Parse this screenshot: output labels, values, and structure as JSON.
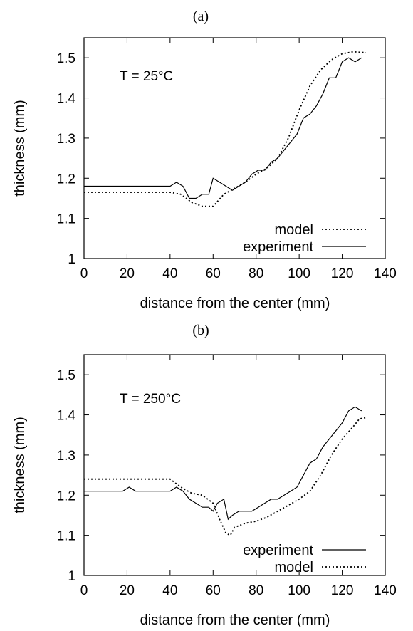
{
  "chart_data": [
    {
      "panel_label": "(a)",
      "type": "line",
      "xlabel": "distance from the center (mm)",
      "ylabel": "thickness (mm)",
      "xlim": [
        0,
        140
      ],
      "ylim": [
        1,
        1.55
      ],
      "xticks": [
        "0",
        "20",
        "40",
        "60",
        "80",
        "100",
        "120",
        "140"
      ],
      "yticks": [
        "1",
        "1.1",
        "1.2",
        "1.3",
        "1.4",
        "1.5"
      ],
      "annotation": "T = 25°C",
      "legend_position": "bottom-right",
      "series": [
        {
          "name": "model",
          "style": "dotted",
          "color": "#000000",
          "x": [
            0,
            20,
            40,
            45,
            50,
            55,
            60,
            65,
            70,
            75,
            80,
            85,
            90,
            95,
            100,
            105,
            110,
            115,
            120,
            125,
            131
          ],
          "y": [
            1.165,
            1.165,
            1.165,
            1.16,
            1.14,
            1.13,
            1.13,
            1.16,
            1.175,
            1.19,
            1.21,
            1.225,
            1.25,
            1.3,
            1.37,
            1.43,
            1.47,
            1.495,
            1.51,
            1.515,
            1.513
          ]
        },
        {
          "name": "experiment",
          "style": "solid",
          "color": "#000000",
          "x": [
            0,
            20,
            40,
            43,
            46,
            49,
            52,
            55,
            58,
            60,
            63,
            66,
            69,
            72,
            75,
            78,
            81,
            84,
            87,
            90,
            93,
            96,
            99,
            102,
            105,
            108,
            111,
            114,
            117,
            120,
            123,
            126,
            129
          ],
          "y": [
            1.18,
            1.18,
            1.18,
            1.19,
            1.18,
            1.15,
            1.15,
            1.16,
            1.16,
            1.2,
            1.19,
            1.18,
            1.17,
            1.18,
            1.19,
            1.21,
            1.22,
            1.22,
            1.24,
            1.25,
            1.27,
            1.29,
            1.31,
            1.35,
            1.36,
            1.38,
            1.41,
            1.45,
            1.45,
            1.49,
            1.5,
            1.49,
            1.5
          ]
        }
      ]
    },
    {
      "panel_label": "(b)",
      "type": "line",
      "xlabel": "distance from the center (mm)",
      "ylabel": "thickness (mm)",
      "xlim": [
        0,
        140
      ],
      "ylim": [
        1,
        1.55
      ],
      "xticks": [
        "0",
        "20",
        "40",
        "60",
        "80",
        "100",
        "120",
        "140"
      ],
      "yticks": [
        "1",
        "1.1",
        "1.2",
        "1.3",
        "1.4",
        "1.5"
      ],
      "annotation": "T = 250°C",
      "legend_position": "bottom-right",
      "series": [
        {
          "name": "experiment",
          "style": "solid",
          "color": "#000000",
          "x": [
            0,
            18,
            21,
            24,
            40,
            43,
            46,
            49,
            52,
            55,
            58,
            60,
            62,
            65,
            67,
            69,
            72,
            75,
            78,
            81,
            84,
            87,
            90,
            93,
            96,
            99,
            102,
            105,
            108,
            111,
            114,
            117,
            120,
            123,
            126,
            129
          ],
          "y": [
            1.21,
            1.21,
            1.22,
            1.21,
            1.21,
            1.22,
            1.21,
            1.19,
            1.18,
            1.17,
            1.17,
            1.16,
            1.18,
            1.19,
            1.14,
            1.15,
            1.16,
            1.16,
            1.16,
            1.17,
            1.18,
            1.19,
            1.19,
            1.2,
            1.21,
            1.22,
            1.25,
            1.28,
            1.29,
            1.32,
            1.34,
            1.36,
            1.38,
            1.41,
            1.42,
            1.41
          ]
        },
        {
          "name": "model",
          "style": "dotted",
          "color": "#000000",
          "x": [
            0,
            20,
            40,
            45,
            50,
            55,
            60,
            63,
            66,
            68,
            70,
            75,
            80,
            85,
            90,
            95,
            100,
            105,
            110,
            115,
            120,
            125,
            128,
            131
          ],
          "y": [
            1.24,
            1.24,
            1.24,
            1.22,
            1.205,
            1.2,
            1.18,
            1.14,
            1.105,
            1.1,
            1.12,
            1.13,
            1.135,
            1.145,
            1.16,
            1.175,
            1.19,
            1.21,
            1.25,
            1.3,
            1.34,
            1.37,
            1.39,
            1.393
          ]
        }
      ]
    }
  ]
}
